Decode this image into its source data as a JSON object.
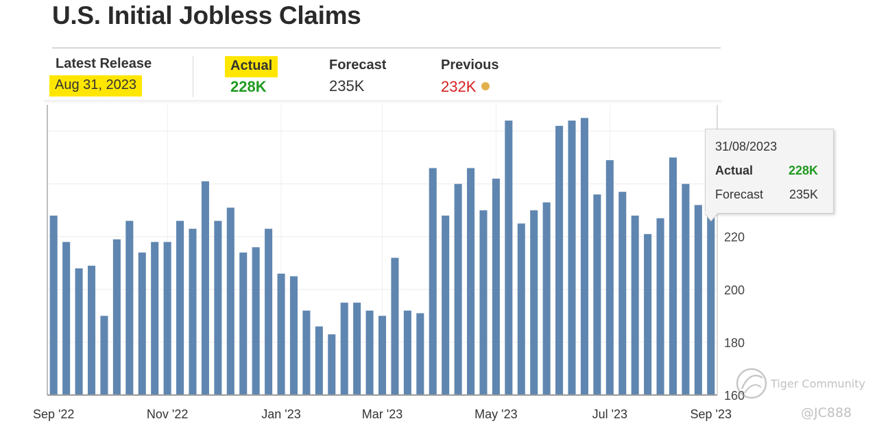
{
  "title": "U.S. Initial Jobless Claims",
  "release": {
    "latest_label": "Latest Release",
    "latest_date": "Aug 31, 2023",
    "actual_label": "Actual",
    "actual_value": "228K",
    "forecast_label": "Forecast",
    "forecast_value": "235K",
    "previous_label": "Previous",
    "previous_value": "232K",
    "actual_color": "#1f9a1f",
    "previous_color": "#d61e1e",
    "previous_dot_color": "#e2b04a",
    "highlight_color": "#ffe600"
  },
  "tooltip": {
    "date": "31/08/2023",
    "actual_label": "Actual",
    "actual_value": "228K",
    "forecast_label": "Forecast",
    "forecast_value": "235K"
  },
  "watermark": {
    "brand": "Tiger Community",
    "handle": "@JC888"
  },
  "chart_data": {
    "type": "bar",
    "title": "U.S. Initial Jobless Claims",
    "xlabel": "",
    "ylabel": "",
    "unit": "K",
    "bar_color": "#5f86b0",
    "ylim": [
      160,
      270
    ],
    "y_ticks": [
      160,
      180,
      200,
      220
    ],
    "x_tick_labels": [
      "Sep '22",
      "Nov '22",
      "Jan '23",
      "Mar '23",
      "May '23",
      "Jul '23",
      "Sep '23"
    ],
    "x_tick_bar_index": [
      0,
      9,
      18,
      26,
      35,
      44,
      52
    ],
    "grid": true,
    "values": [
      228,
      218,
      208,
      209,
      190,
      219,
      226,
      214,
      218,
      218,
      226,
      223,
      241,
      226,
      231,
      214,
      216,
      223,
      206,
      205,
      192,
      186,
      183,
      195,
      195,
      192,
      190,
      212,
      192,
      191,
      246,
      228,
      240,
      246,
      230,
      242,
      264,
      225,
      230,
      233,
      262,
      264,
      265,
      236,
      249,
      237,
      228,
      221,
      227,
      250,
      240,
      232,
      228
    ]
  }
}
